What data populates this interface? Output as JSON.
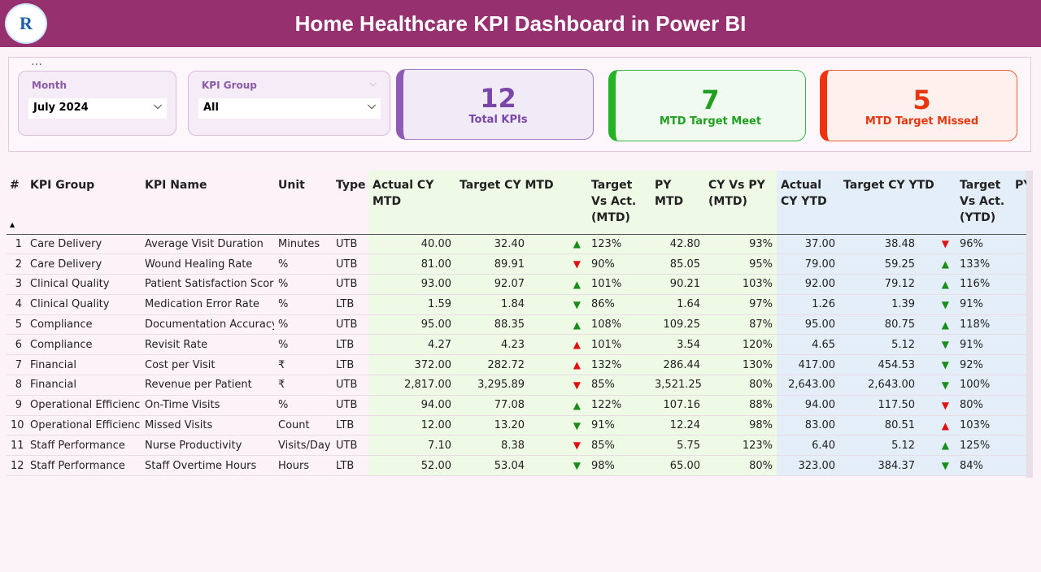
{
  "header": {
    "title": "Home Healthcare KPI Dashboard in Power BI"
  },
  "slicers": [
    {
      "label": "Month",
      "value": "July 2024"
    },
    {
      "label": "KPI Group",
      "value": "All"
    }
  ],
  "cards": [
    {
      "value": "12",
      "label": "Total KPIs"
    },
    {
      "value": "7",
      "label": "MTD Target Meet"
    },
    {
      "value": "5",
      "label": "MTD Target Missed"
    }
  ],
  "table": {
    "headers": [
      "#",
      "KPI Group",
      "KPI Name",
      "Unit",
      "Type",
      "Actual CY MTD",
      "Target CY MTD",
      "Target Vs Act. (MTD)",
      "PY MTD",
      "CY Vs PY (MTD)",
      "Actual CY YTD",
      "Target CY YTD",
      "Target Vs Act. (YTD)",
      "PY"
    ],
    "rows": [
      [
        "1",
        "Care Delivery",
        "Average Visit Duration",
        "Minutes",
        "UTB",
        "40.00",
        "32.40",
        {
          "text": "▲",
          "color": "#1a8c1a"
        },
        "123%",
        "42.80",
        "93%",
        "37.00",
        "38.48",
        {
          "text": "▼",
          "color": "#e01010"
        },
        "96%"
      ],
      [
        "2",
        "Care Delivery",
        "Wound Healing Rate",
        "%",
        "UTB",
        "81.00",
        "89.91",
        {
          "text": "▼",
          "color": "#e01010"
        },
        "90%",
        "85.05",
        "95%",
        "79.00",
        "59.25",
        {
          "text": "▲",
          "color": "#1a8c1a"
        },
        "133%"
      ],
      [
        "3",
        "Clinical Quality",
        "Patient Satisfaction Score",
        "%",
        "UTB",
        "93.00",
        "92.07",
        {
          "text": "▲",
          "color": "#1a8c1a"
        },
        "101%",
        "90.21",
        "103%",
        "92.00",
        "79.12",
        {
          "text": "▲",
          "color": "#1a8c1a"
        },
        "116%"
      ],
      [
        "4",
        "Clinical Quality",
        "Medication Error Rate",
        "%",
        "LTB",
        "1.59",
        "1.84",
        {
          "text": "▼",
          "color": "#1a8c1a"
        },
        "86%",
        "1.64",
        "97%",
        "1.26",
        "1.39",
        {
          "text": "▼",
          "color": "#1a8c1a"
        },
        "91%"
      ],
      [
        "5",
        "Compliance",
        "Documentation Accuracy",
        "%",
        "UTB",
        "95.00",
        "88.35",
        {
          "text": "▲",
          "color": "#1a8c1a"
        },
        "108%",
        "109.25",
        "87%",
        "95.00",
        "80.75",
        {
          "text": "▲",
          "color": "#1a8c1a"
        },
        "118%"
      ],
      [
        "6",
        "Compliance",
        "Revisit Rate",
        "%",
        "LTB",
        "4.27",
        "4.23",
        {
          "text": "▲",
          "color": "#e01010"
        },
        "101%",
        "3.54",
        "120%",
        "4.65",
        "5.12",
        {
          "text": "▼",
          "color": "#1a8c1a"
        },
        "91%"
      ],
      [
        "7",
        "Financial",
        "Cost per Visit",
        "₹",
        "LTB",
        "372.00",
        "282.72",
        {
          "text": "▲",
          "color": "#e01010"
        },
        "132%",
        "286.44",
        "130%",
        "417.00",
        "454.53",
        {
          "text": "▼",
          "color": "#1a8c1a"
        },
        "92%"
      ],
      [
        "8",
        "Financial",
        "Revenue per Patient",
        "₹",
        "UTB",
        "2,817.00",
        "3,295.89",
        {
          "text": "▼",
          "color": "#e01010"
        },
        "85%",
        "3,521.25",
        "80%",
        "2,643.00",
        "2,643.00",
        {
          "text": "▼",
          "color": "#1a8c1a"
        },
        "100%"
      ],
      [
        "9",
        "Operational Efficiency",
        "On-Time Visits",
        "%",
        "UTB",
        "94.00",
        "77.08",
        {
          "text": "▲",
          "color": "#1a8c1a"
        },
        "122%",
        "107.16",
        "88%",
        "94.00",
        "117.50",
        {
          "text": "▼",
          "color": "#e01010"
        },
        "80%"
      ],
      [
        "10",
        "Operational Efficiency",
        "Missed Visits",
        "Count",
        "LTB",
        "12.00",
        "13.20",
        {
          "text": "▼",
          "color": "#1a8c1a"
        },
        "91%",
        "12.24",
        "98%",
        "83.00",
        "80.51",
        {
          "text": "▲",
          "color": "#e01010"
        },
        "103%"
      ],
      [
        "11",
        "Staff Performance",
        "Nurse Productivity",
        "Visits/Day",
        "UTB",
        "7.10",
        "8.38",
        {
          "text": "▼",
          "color": "#e01010"
        },
        "85%",
        "5.75",
        "123%",
        "6.40",
        "5.12",
        {
          "text": "▲",
          "color": "#1a8c1a"
        },
        "125%"
      ],
      [
        "12",
        "Staff Performance",
        "Staff Overtime Hours",
        "Hours",
        "LTB",
        "52.00",
        "53.04",
        {
          "text": "▼",
          "color": "#1a8c1a"
        },
        "98%",
        "65.00",
        "80%",
        "323.00",
        "384.37",
        {
          "text": "▼",
          "color": "#1a8c1a"
        },
        "84%"
      ]
    ]
  }
}
